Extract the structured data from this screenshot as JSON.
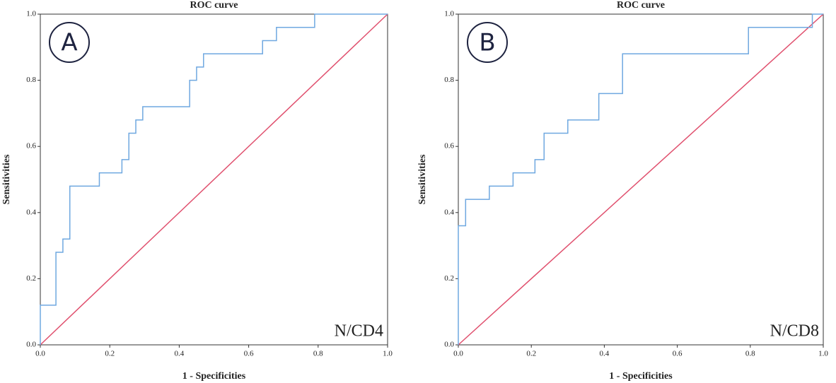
{
  "chart_data": [
    {
      "type": "line",
      "title": "ROC curve",
      "xlabel": "1 - Specificities",
      "ylabel": "Sensitivities",
      "panel_label": "A",
      "annotation": "N/CD4",
      "xlim": [
        0,
        1
      ],
      "ylim": [
        0,
        1
      ],
      "xticks": [
        {
          "value": 0,
          "label": "0.0"
        },
        0.2,
        0.4,
        0.6,
        0.8,
        {
          "value": 1,
          "label": "1.0"
        }
      ],
      "yticks": [
        {
          "value": 0,
          "label": "0.0"
        },
        0.2,
        0.4,
        0.6,
        0.8,
        {
          "value": 1,
          "label": "1.0"
        }
      ],
      "series": [
        {
          "color": "#6fa8e0",
          "x": [
            0,
            0,
            0.045,
            0.045,
            0.065,
            0.065,
            0.085,
            0.085,
            0.17,
            0.17,
            0.235,
            0.235,
            0.255,
            0.255,
            0.275,
            0.275,
            0.295,
            0.295,
            0.43,
            0.43,
            0.45,
            0.45,
            0.47,
            0.47,
            0.64,
            0.64,
            0.68,
            0.68,
            0.79,
            0.79,
            1
          ],
          "values": [
            0,
            0.12,
            0.12,
            0.28,
            0.28,
            0.32,
            0.32,
            0.48,
            0.48,
            0.52,
            0.52,
            0.56,
            0.56,
            0.64,
            0.64,
            0.68,
            0.68,
            0.72,
            0.72,
            0.8,
            0.8,
            0.84,
            0.84,
            0.88,
            0.88,
            0.92,
            0.92,
            0.96,
            0.96,
            1,
            1
          ]
        },
        {
          "color": "#e0506e",
          "x": [
            0,
            1
          ],
          "values": [
            0,
            1
          ]
        }
      ]
    },
    {
      "type": "line",
      "title": "ROC curve",
      "xlabel": "1 - Specificities",
      "ylabel": "Sensitivities",
      "panel_label": "B",
      "annotation": "N/CD8",
      "xlim": [
        0,
        1
      ],
      "ylim": [
        0,
        1
      ],
      "xticks": [
        {
          "value": 0,
          "label": "0.0"
        },
        0.2,
        0.4,
        0.6,
        0.8,
        {
          "value": 1,
          "label": "1.0"
        }
      ],
      "yticks": [
        {
          "value": 0,
          "label": "0.0"
        },
        0.2,
        0.4,
        0.6,
        0.8,
        {
          "value": 1,
          "label": "1.0"
        }
      ],
      "series": [
        {
          "color": "#6fa8e0",
          "x": [
            0,
            0,
            0.02,
            0.02,
            0.085,
            0.085,
            0.15,
            0.15,
            0.21,
            0.21,
            0.235,
            0.235,
            0.3,
            0.3,
            0.385,
            0.385,
            0.45,
            0.45,
            0.795,
            0.795,
            0.97,
            0.97,
            1
          ],
          "values": [
            0,
            0.36,
            0.36,
            0.44,
            0.44,
            0.48,
            0.48,
            0.52,
            0.52,
            0.56,
            0.56,
            0.64,
            0.64,
            0.68,
            0.68,
            0.76,
            0.76,
            0.88,
            0.88,
            0.96,
            0.96,
            1,
            1
          ]
        },
        {
          "color": "#e0506e",
          "x": [
            0,
            1
          ],
          "values": [
            0,
            1
          ]
        }
      ]
    }
  ]
}
